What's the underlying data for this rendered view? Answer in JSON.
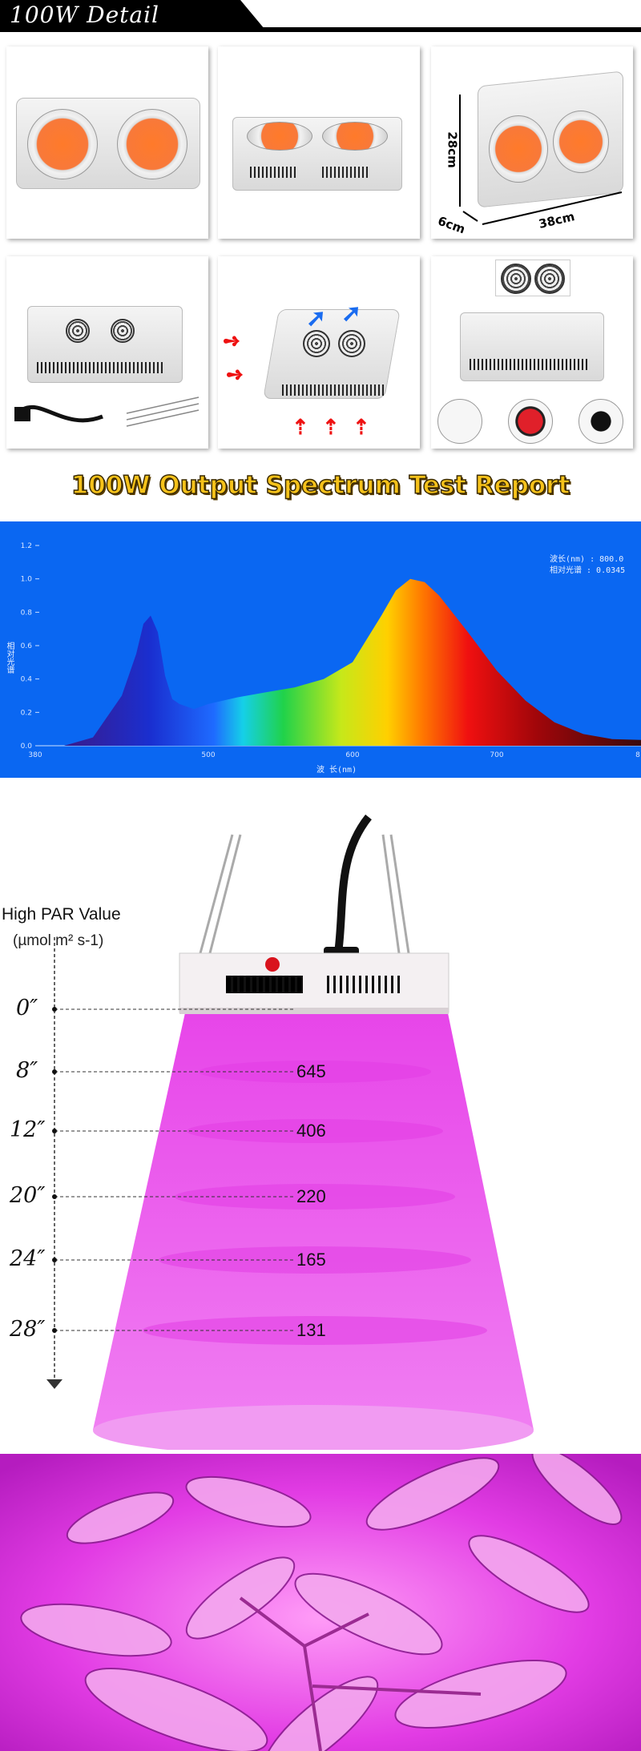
{
  "header": {
    "title": "100W Detail"
  },
  "detail": {
    "dimensions": {
      "height": "28cm",
      "width": "38cm",
      "depth": "6cm"
    }
  },
  "report": {
    "title": "100W Output Spectrum Test Report"
  },
  "chart_data": {
    "type": "area",
    "title": "",
    "xlabel": "波 长(nm)",
    "ylabel": "相对光谱",
    "xlim": [
      380,
      800
    ],
    "ylim": [
      0,
      1.2
    ],
    "y_ticks": [
      "0.0",
      "0.2",
      "0.4",
      "0.6",
      "0.8",
      "1.0",
      "1.2"
    ],
    "x_ticks": [
      "380",
      "500",
      "600",
      "700",
      "8"
    ],
    "legend": [
      "波长(nm) : 800.0",
      "相对光谱 : 0.0345"
    ],
    "x": [
      400,
      420,
      440,
      450,
      455,
      460,
      465,
      470,
      475,
      480,
      490,
      500,
      520,
      540,
      560,
      580,
      600,
      620,
      630,
      640,
      650,
      660,
      680,
      700,
      720,
      740,
      760,
      780,
      800
    ],
    "y": [
      0.0,
      0.05,
      0.3,
      0.55,
      0.73,
      0.78,
      0.68,
      0.42,
      0.28,
      0.25,
      0.22,
      0.25,
      0.29,
      0.32,
      0.35,
      0.4,
      0.5,
      0.78,
      0.93,
      1.0,
      0.98,
      0.9,
      0.68,
      0.45,
      0.27,
      0.14,
      0.07,
      0.04,
      0.0345
    ]
  },
  "par": {
    "title": "High PAR Value",
    "unit": "(µmol m² s-1)",
    "rows": [
      {
        "distance": "0″",
        "value": ""
      },
      {
        "distance": "8″",
        "value": "645"
      },
      {
        "distance": "12″",
        "value": "406"
      },
      {
        "distance": "20″",
        "value": "220"
      },
      {
        "distance": "24″",
        "value": "165"
      },
      {
        "distance": "28″",
        "value": "131"
      }
    ]
  },
  "colors": {
    "spectrum_bg": "#0a67f2",
    "par_light": "#ee5ef0",
    "plant_bg": "#e23ce4",
    "report_title": "#f6c21a"
  }
}
